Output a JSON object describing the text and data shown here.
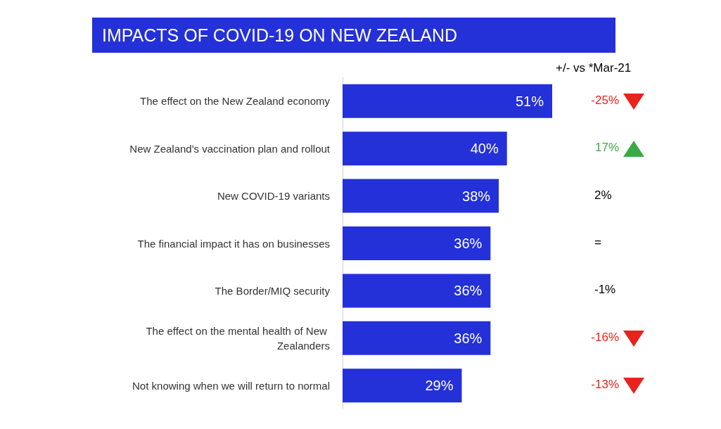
{
  "chart_data": {
    "type": "bar",
    "orientation": "horizontal",
    "title": "IMPACTS OF COVID-19 ON NEW ZEALAND",
    "categories": [
      "The effect on the New Zealand economy",
      "New Zealand's vaccination plan and rollout",
      "New COVID-19 variants",
      "The financial impact it has on businesses",
      "The Border/MIQ security",
      "The effect on the mental health of New Zealanders",
      "Not knowing when we will return to normal"
    ],
    "values": [
      51,
      40,
      38,
      36,
      36,
      36,
      29
    ],
    "value_labels": [
      "51%",
      "40%",
      "38%",
      "36%",
      "36%",
      "36%",
      "29%"
    ],
    "color": "#2430d8",
    "annotations": [
      "+/- vs *Mar-21",
      "-25%",
      "17%",
      "2%",
      "=",
      "-1%",
      "-16%",
      "-13%"
    ]
  }
}
